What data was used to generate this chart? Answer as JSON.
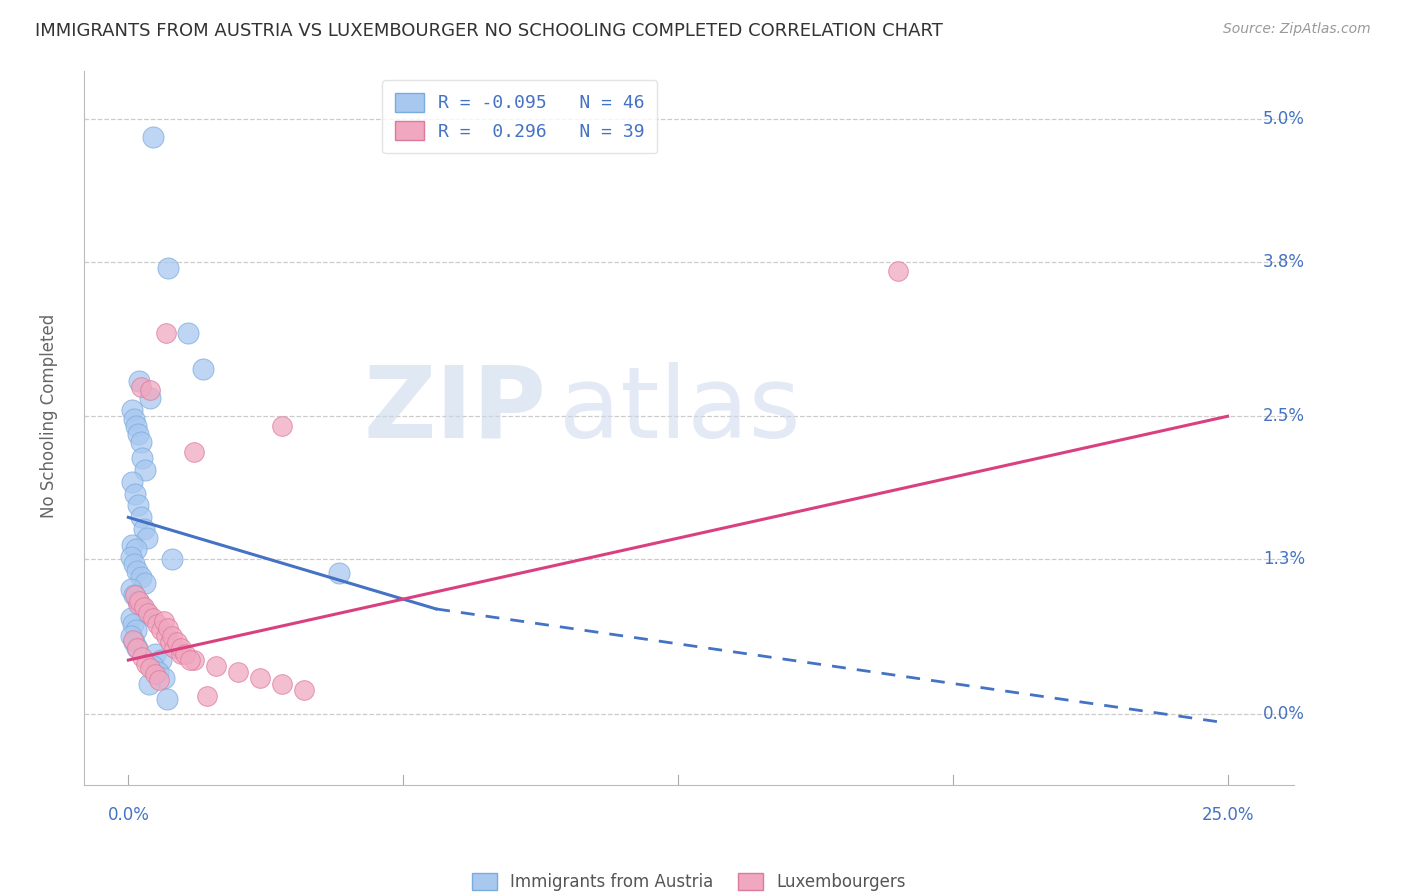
{
  "title": "IMMIGRANTS FROM AUSTRIA VS LUXEMBOURGER NO SCHOOLING COMPLETED CORRELATION CHART",
  "source": "Source: ZipAtlas.com",
  "ylabel": "No Schooling Completed",
  "ytick_vals": [
    0.0,
    1.3,
    2.5,
    3.8,
    5.0
  ],
  "ytick_labels": [
    "0.0%",
    "1.3%",
    "2.5%",
    "3.8%",
    "5.0%"
  ],
  "xlim": [
    0.0,
    25.0
  ],
  "ylim": [
    -0.6,
    5.4
  ],
  "series1_name": "Immigrants from Austria",
  "series2_name": "Luxembourgers",
  "series1_color": "#a8c8f0",
  "series1_edge": "#7aabdd",
  "series2_color": "#f0a8c0",
  "series2_edge": "#dd7a9a",
  "line1_color": "#4472C4",
  "line2_color": "#D94080",
  "legend1_text": "R = -0.095   N = 46",
  "legend2_text": "R =  0.296   N = 39",
  "austria_x": [
    0.55,
    0.9,
    1.35,
    1.7,
    0.25,
    0.5,
    0.08,
    0.12,
    0.18,
    0.22,
    0.28,
    0.32,
    0.38,
    0.08,
    0.15,
    0.22,
    0.28,
    0.35,
    0.42,
    0.08,
    0.18,
    0.05,
    0.12,
    0.2,
    0.28,
    0.38,
    0.06,
    0.14,
    0.22,
    0.3,
    0.4,
    0.05,
    0.1,
    0.18,
    0.06,
    0.12,
    0.2,
    4.8,
    0.6,
    0.75,
    0.55,
    0.68,
    0.82,
    0.48,
    1.0,
    0.88
  ],
  "austria_y": [
    4.85,
    3.75,
    3.2,
    2.9,
    2.8,
    2.65,
    2.55,
    2.48,
    2.42,
    2.35,
    2.28,
    2.15,
    2.05,
    1.95,
    1.85,
    1.75,
    1.65,
    1.55,
    1.48,
    1.42,
    1.38,
    1.32,
    1.26,
    1.2,
    1.15,
    1.1,
    1.05,
    1.0,
    0.95,
    0.9,
    0.85,
    0.8,
    0.75,
    0.7,
    0.65,
    0.6,
    0.55,
    1.18,
    0.5,
    0.45,
    0.4,
    0.35,
    0.3,
    0.25,
    1.3,
    0.12
  ],
  "luxemb_x": [
    0.28,
    0.5,
    17.5,
    0.22,
    0.85,
    3.5,
    0.15,
    0.25,
    0.35,
    0.45,
    0.55,
    0.65,
    0.75,
    0.85,
    0.95,
    1.05,
    1.2,
    1.5,
    2.0,
    2.5,
    3.0,
    1.5,
    3.5,
    4.0,
    1.8,
    0.1,
    0.2,
    0.3,
    0.4,
    0.5,
    0.6,
    0.7,
    0.8,
    0.9,
    1.0,
    1.1,
    1.2,
    1.3,
    1.4
  ],
  "luxemb_y": [
    2.75,
    2.72,
    3.72,
    0.92,
    3.2,
    2.42,
    1.0,
    0.95,
    0.9,
    0.85,
    0.8,
    0.75,
    0.7,
    0.65,
    0.6,
    0.55,
    0.5,
    0.45,
    0.4,
    0.35,
    0.3,
    2.2,
    0.25,
    0.2,
    0.15,
    0.62,
    0.55,
    0.48,
    0.42,
    0.38,
    0.33,
    0.28,
    0.78,
    0.72,
    0.65,
    0.6,
    0.55,
    0.5,
    0.45
  ],
  "line1_x0": 0.0,
  "line1_y0": 1.65,
  "line1_x1": 7.0,
  "line1_y1": 0.88,
  "line1_x2": 25.0,
  "line1_y2": -0.08,
  "line2_x0": 0.0,
  "line2_y0": 0.45,
  "line2_x1": 25.0,
  "line2_y1": 2.5
}
